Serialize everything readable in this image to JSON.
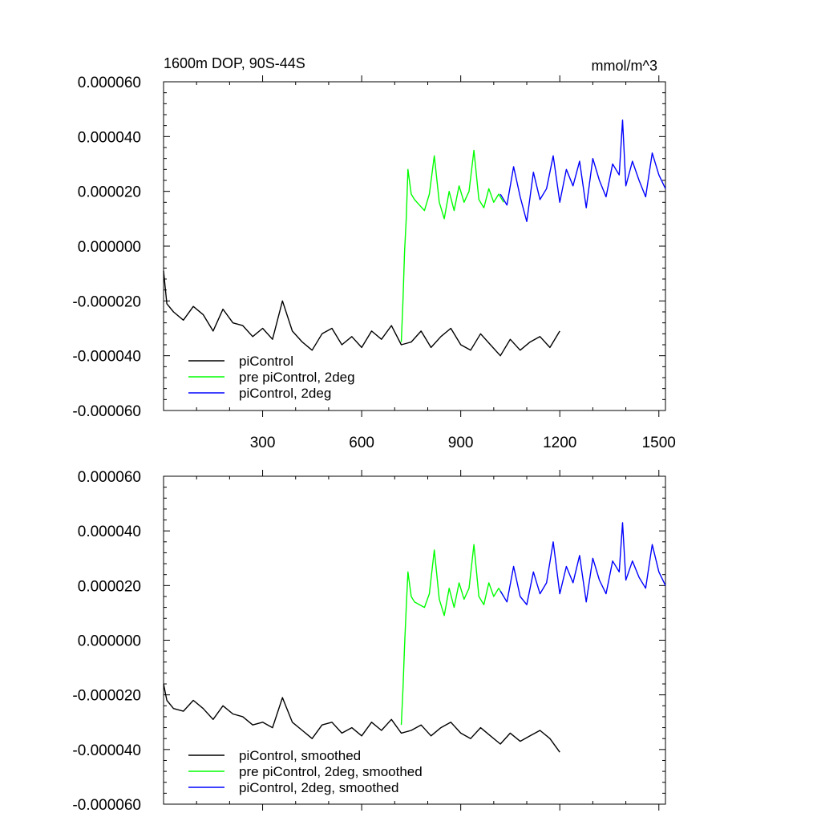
{
  "chart_data": [
    {
      "type": "line",
      "title": "1600m DOP, 90S-44S",
      "units_label": "mmol/m^3",
      "xlim": [
        0,
        1520
      ],
      "ylim": [
        -6e-05,
        6e-05
      ],
      "x_ticks": [
        300,
        600,
        900,
        1200,
        1500
      ],
      "x_tick_labels": [
        "300",
        "600",
        "900",
        "1200",
        "1500"
      ],
      "y_ticks": [
        -6e-05,
        -4e-05,
        -2e-05,
        0,
        2e-05,
        4e-05,
        6e-05
      ],
      "y_tick_labels": [
        "-0.000060",
        "-0.000040",
        "-0.000020",
        "0.000000",
        "0.000020",
        "0.000040",
        "0.000060"
      ],
      "legend_position": "bottom-left",
      "series": [
        {
          "name": "piControl",
          "color": "#000000",
          "x": [
            0,
            10,
            30,
            60,
            90,
            120,
            150,
            180,
            210,
            240,
            270,
            300,
            330,
            360,
            390,
            420,
            450,
            480,
            510,
            540,
            570,
            600,
            630,
            660,
            690,
            720,
            750,
            780,
            810,
            840,
            870,
            900,
            930,
            960,
            990,
            1020,
            1050,
            1080,
            1110,
            1140,
            1170,
            1200
          ],
          "y": [
            -9e-06,
            -2.1e-05,
            -2.4e-05,
            -2.7e-05,
            -2.2e-05,
            -2.5e-05,
            -3.1e-05,
            -2.3e-05,
            -2.8e-05,
            -2.9e-05,
            -3.3e-05,
            -3e-05,
            -3.4e-05,
            -2e-05,
            -3.1e-05,
            -3.5e-05,
            -3.8e-05,
            -3.2e-05,
            -3e-05,
            -3.6e-05,
            -3.3e-05,
            -3.7e-05,
            -3.1e-05,
            -3.4e-05,
            -2.9e-05,
            -3.6e-05,
            -3.5e-05,
            -3.1e-05,
            -3.7e-05,
            -3.3e-05,
            -3e-05,
            -3.6e-05,
            -3.8e-05,
            -3.2e-05,
            -3.6e-05,
            -4e-05,
            -3.4e-05,
            -3.8e-05,
            -3.5e-05,
            -3.3e-05,
            -3.7e-05,
            -3.1e-05
          ]
        },
        {
          "name": "pre piControl, 2deg",
          "color": "#00ff00",
          "x": [
            720,
            725,
            730,
            735,
            740,
            750,
            760,
            775,
            790,
            805,
            820,
            835,
            850,
            865,
            880,
            895,
            910,
            925,
            940,
            955,
            970,
            985,
            1000,
            1015,
            1030
          ],
          "y": [
            -3.5e-05,
            -2e-05,
            -2e-06,
            1e-05,
            2.8e-05,
            1.9e-05,
            1.7e-05,
            1.5e-05,
            1.3e-05,
            1.9e-05,
            3.3e-05,
            1.6e-05,
            1e-05,
            2e-05,
            1.3e-05,
            2.2e-05,
            1.6e-05,
            2e-05,
            3.5e-05,
            1.7e-05,
            1.4e-05,
            2.1e-05,
            1.6e-05,
            1.9e-05,
            1.6e-05
          ]
        },
        {
          "name": "piControl, 2deg",
          "color": "#0000ff",
          "x": [
            1020,
            1040,
            1060,
            1080,
            1100,
            1120,
            1140,
            1160,
            1180,
            1200,
            1220,
            1240,
            1260,
            1280,
            1300,
            1320,
            1340,
            1360,
            1380,
            1390,
            1400,
            1420,
            1440,
            1460,
            1480,
            1500,
            1520
          ],
          "y": [
            1.9e-05,
            1.5e-05,
            2.9e-05,
            1.8e-05,
            9e-06,
            2.7e-05,
            1.7e-05,
            2.1e-05,
            3.3e-05,
            1.6e-05,
            2.8e-05,
            2.2e-05,
            3.1e-05,
            1.4e-05,
            3.2e-05,
            2.4e-05,
            1.8e-05,
            3e-05,
            2.6e-05,
            4.6e-05,
            2.2e-05,
            3.1e-05,
            2.4e-05,
            1.8e-05,
            3.4e-05,
            2.6e-05,
            2.1e-05
          ]
        }
      ]
    },
    {
      "type": "line",
      "title": "",
      "xlim": [
        0,
        1520
      ],
      "ylim": [
        -6e-05,
        6e-05
      ],
      "x_ticks": [
        300,
        600,
        900,
        1200,
        1500
      ],
      "x_tick_labels": [],
      "y_ticks": [
        -6e-05,
        -4e-05,
        -2e-05,
        0,
        2e-05,
        4e-05,
        6e-05
      ],
      "y_tick_labels": [
        "-0.000060",
        "-0.000040",
        "-0.000020",
        "0.000000",
        "0.000020",
        "0.000040",
        "0.000060"
      ],
      "legend_position": "bottom-left",
      "series": [
        {
          "name": "piControl, smoothed",
          "color": "#000000",
          "x": [
            0,
            10,
            30,
            60,
            90,
            120,
            150,
            180,
            210,
            240,
            270,
            300,
            330,
            360,
            390,
            420,
            450,
            480,
            510,
            540,
            570,
            600,
            630,
            660,
            690,
            720,
            750,
            780,
            810,
            840,
            870,
            900,
            930,
            960,
            990,
            1020,
            1050,
            1080,
            1110,
            1140,
            1170,
            1200
          ],
          "y": [
            -1.6e-05,
            -2.2e-05,
            -2.5e-05,
            -2.6e-05,
            -2.2e-05,
            -2.5e-05,
            -2.9e-05,
            -2.4e-05,
            -2.7e-05,
            -2.8e-05,
            -3.1e-05,
            -3e-05,
            -3.2e-05,
            -2.1e-05,
            -3e-05,
            -3.3e-05,
            -3.6e-05,
            -3.1e-05,
            -3e-05,
            -3.4e-05,
            -3.2e-05,
            -3.5e-05,
            -3e-05,
            -3.3e-05,
            -2.9e-05,
            -3.4e-05,
            -3.3e-05,
            -3.1e-05,
            -3.5e-05,
            -3.2e-05,
            -3e-05,
            -3.4e-05,
            -3.6e-05,
            -3.2e-05,
            -3.5e-05,
            -3.8e-05,
            -3.4e-05,
            -3.7e-05,
            -3.5e-05,
            -3.3e-05,
            -3.6e-05,
            -4.1e-05
          ]
        },
        {
          "name": "pre piControl, 2deg, smoothed",
          "color": "#00ff00",
          "x": [
            720,
            725,
            730,
            735,
            740,
            750,
            760,
            775,
            790,
            805,
            820,
            835,
            850,
            865,
            880,
            895,
            910,
            925,
            940,
            955,
            970,
            985,
            1000,
            1015,
            1030
          ],
          "y": [
            -3.1e-05,
            -1.8e-05,
            -2e-06,
            1.2e-05,
            2.5e-05,
            1.6e-05,
            1.4e-05,
            1.3e-05,
            1.2e-05,
            1.7e-05,
            3.3e-05,
            1.5e-05,
            9e-06,
            1.9e-05,
            1.2e-05,
            2.1e-05,
            1.5e-05,
            1.9e-05,
            3.5e-05,
            1.6e-05,
            1.3e-05,
            2.1e-05,
            1.6e-05,
            1.9e-05,
            1.6e-05
          ]
        },
        {
          "name": "piControl, 2deg, smoothed",
          "color": "#0000ff",
          "x": [
            1020,
            1040,
            1060,
            1080,
            1100,
            1120,
            1140,
            1160,
            1180,
            1200,
            1220,
            1240,
            1260,
            1280,
            1300,
            1320,
            1340,
            1360,
            1380,
            1390,
            1400,
            1420,
            1440,
            1460,
            1480,
            1500,
            1520
          ],
          "y": [
            1.8e-05,
            1.4e-05,
            2.7e-05,
            1.6e-05,
            1.3e-05,
            2.5e-05,
            1.7e-05,
            2.1e-05,
            3.6e-05,
            1.7e-05,
            2.7e-05,
            2.1e-05,
            3.1e-05,
            1.4e-05,
            3e-05,
            2.2e-05,
            1.7e-05,
            2.9e-05,
            2.5e-05,
            4.3e-05,
            2.2e-05,
            2.9e-05,
            2.3e-05,
            1.9e-05,
            3.5e-05,
            2.5e-05,
            2e-05
          ]
        }
      ]
    }
  ]
}
